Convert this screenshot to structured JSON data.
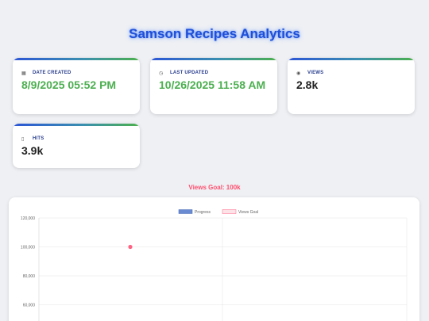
{
  "header": {
    "title": "Samson Recipes Analytics"
  },
  "cards": [
    {
      "label": "DATE CREATED",
      "icon": "calendar-icon",
      "glyph": "▦",
      "value": "8/9/2025 05:52 PM"
    },
    {
      "label": "LAST UPDATED",
      "icon": "clock-icon",
      "glyph": "◷",
      "value": "10/26/2025 11:58 AM"
    },
    {
      "label": "VIEWS",
      "icon": "eye-icon",
      "glyph": "◉",
      "value": "2.8k"
    },
    {
      "label": "HITS",
      "icon": "document-icon",
      "glyph": "▯",
      "value": "3.9k"
    }
  ],
  "goal": {
    "text": "Views Goal: 100k"
  },
  "colors": {
    "accent_blue": "#1f4fd8",
    "value_green": "#4caf50",
    "goal_pink": "#ff4f6e"
  },
  "chart_data": {
    "type": "line",
    "series": [
      {
        "name": "Progress",
        "color": "#6a8bd1",
        "values": []
      },
      {
        "name": "Views Goal",
        "color": "#ff6384",
        "values": [
          100000
        ]
      }
    ],
    "y_ticks": [
      "120,000",
      "100,000",
      "80,000",
      "60,000"
    ],
    "ylim": [
      50000,
      120000
    ],
    "legend": "top-center",
    "grid": true
  }
}
